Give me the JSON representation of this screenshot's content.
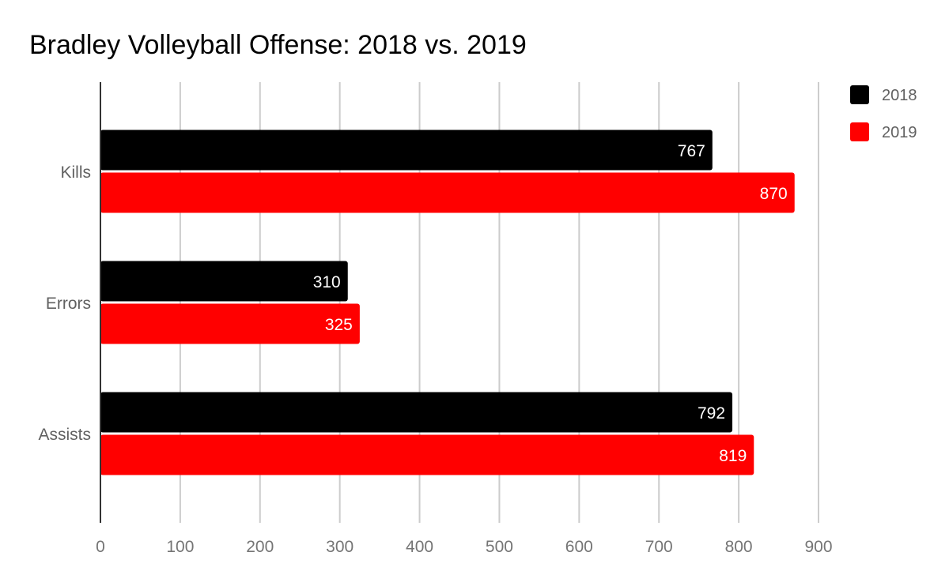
{
  "chart_data": {
    "type": "bar",
    "orientation": "horizontal",
    "title": "Bradley Volleyball Offense: 2018 vs. 2019",
    "categories": [
      "Kills",
      "Errors",
      "Assists"
    ],
    "series": [
      {
        "name": "2018",
        "color": "#000000",
        "values": [
          767,
          310,
          792
        ]
      },
      {
        "name": "2019",
        "color": "#ff0000",
        "values": [
          870,
          325,
          819
        ]
      }
    ],
    "xlim": [
      0,
      900
    ],
    "xticks": [
      0,
      100,
      200,
      300,
      400,
      500,
      600,
      700,
      800,
      900
    ],
    "xlabel": "",
    "ylabel": "",
    "grid": true,
    "legend_position": "top-right"
  }
}
